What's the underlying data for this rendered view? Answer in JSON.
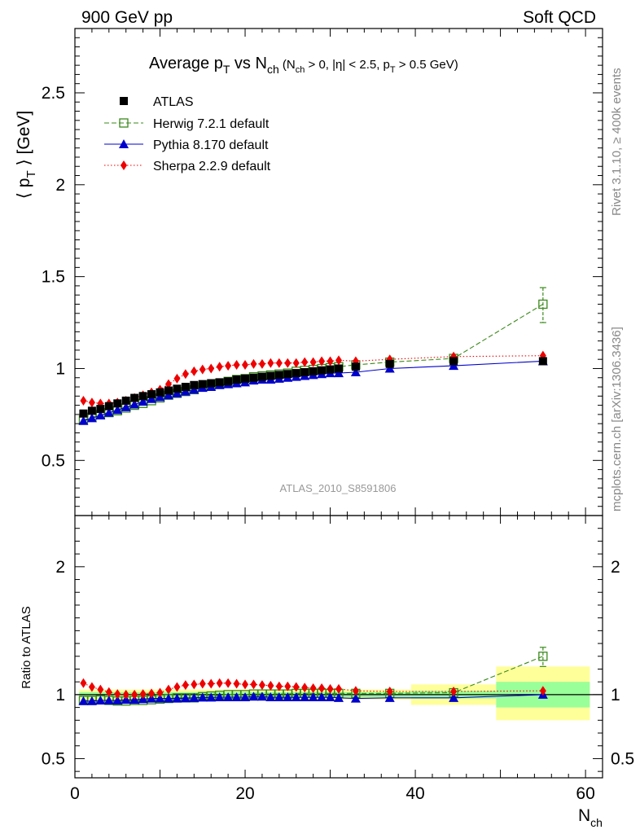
{
  "header": {
    "left": "900 GeV pp",
    "right": "Soft QCD"
  },
  "side_labels": {
    "rivet": "Rivet 3.1.10, ≥ 400k events",
    "mcplots": "mcplots.cern.ch [arXiv:1306.3436]"
  },
  "watermark": "ATLAS_2010_S8591806",
  "chart_data": [
    {
      "type": "scatter",
      "title": "Average pT vs Nch (Nch > 0, |η| < 2.5, pT > 0.5 GeV)",
      "title_parts": {
        "main": "Average p",
        "pt_sub": "T",
        "vs": " vs N",
        "ch_sub": "ch",
        "cut1": " (N",
        "cut_ch_sub": "ch",
        "cut2": " > 0, |η| < 2.5, p",
        "cut_pt_sub": "T",
        "cut3": " > 0.5 GeV)"
      },
      "ylabel": "⟨ pT ⟩ [GeV]",
      "ylabel_parts": {
        "open": "⟨ p",
        "sub": "T",
        "close": " ⟩ [GeV]"
      },
      "xlim": [
        0,
        62
      ],
      "ylim": [
        0.2,
        2.85
      ],
      "yticks": [
        0.5,
        1,
        1.5,
        2,
        2.5
      ],
      "ytick_labels": [
        "0.5",
        "1",
        "1.5",
        "2",
        "2.5"
      ],
      "legend_position": "top-left",
      "series": [
        {
          "name": "ATLAS",
          "color": "#000000",
          "marker": "square",
          "x": [
            1,
            2,
            3,
            4,
            5,
            6,
            7,
            8,
            9,
            10,
            11,
            12,
            13,
            14,
            15,
            16,
            17,
            18,
            19,
            20,
            21,
            22,
            23,
            24,
            25,
            26,
            27,
            28,
            29,
            30,
            31,
            33,
            37,
            44.5,
            55
          ],
          "y": [
            0.755,
            0.77,
            0.78,
            0.795,
            0.81,
            0.825,
            0.84,
            0.85,
            0.86,
            0.87,
            0.88,
            0.89,
            0.9,
            0.91,
            0.915,
            0.92,
            0.925,
            0.93,
            0.94,
            0.945,
            0.95,
            0.955,
            0.96,
            0.965,
            0.97,
            0.975,
            0.98,
            0.985,
            0.99,
            0.995,
            1.0,
            1.01,
            1.025,
            1.04,
            1.04
          ]
        },
        {
          "name": "Herwig 7.2.1 default",
          "color": "#3a8a1a",
          "marker": "open-square",
          "line": "dashed",
          "x": [
            1,
            2,
            3,
            4,
            5,
            6,
            7,
            8,
            9,
            10,
            11,
            12,
            13,
            14,
            15,
            16,
            17,
            18,
            19,
            20,
            21,
            22,
            23,
            24,
            25,
            26,
            27,
            28,
            29,
            30,
            31,
            33,
            37,
            44.5,
            55
          ],
          "y": [
            0.72,
            0.735,
            0.75,
            0.76,
            0.77,
            0.785,
            0.8,
            0.81,
            0.825,
            0.84,
            0.855,
            0.865,
            0.875,
            0.885,
            0.9,
            0.91,
            0.92,
            0.93,
            0.94,
            0.945,
            0.955,
            0.96,
            0.965,
            0.97,
            0.975,
            0.985,
            0.99,
            0.995,
            1.0,
            1.005,
            1.01,
            1.02,
            1.035,
            1.055,
            1.35
          ]
        },
        {
          "name": "Pythia 8.170 default",
          "color": "#0000cc",
          "marker": "triangle",
          "line": "solid",
          "x": [
            1,
            2,
            3,
            4,
            5,
            6,
            7,
            8,
            9,
            10,
            11,
            12,
            13,
            14,
            15,
            16,
            17,
            18,
            19,
            20,
            21,
            22,
            23,
            24,
            25,
            26,
            27,
            28,
            29,
            30,
            31,
            33,
            37,
            44.5,
            55
          ],
          "y": [
            0.715,
            0.73,
            0.745,
            0.76,
            0.775,
            0.79,
            0.805,
            0.82,
            0.835,
            0.845,
            0.855,
            0.865,
            0.875,
            0.885,
            0.895,
            0.9,
            0.91,
            0.915,
            0.92,
            0.925,
            0.935,
            0.94,
            0.94,
            0.945,
            0.95,
            0.955,
            0.96,
            0.965,
            0.97,
            0.975,
            0.975,
            0.98,
            1.0,
            1.015,
            1.04
          ]
        },
        {
          "name": "Sherpa 2.2.9 default",
          "color": "#ee0000",
          "marker": "diamond",
          "line": "dotted",
          "x": [
            1,
            2,
            3,
            4,
            5,
            6,
            7,
            8,
            9,
            10,
            11,
            12,
            13,
            14,
            15,
            16,
            17,
            18,
            19,
            20,
            21,
            22,
            23,
            24,
            25,
            26,
            27,
            28,
            29,
            30,
            31,
            33,
            37,
            44.5,
            55
          ],
          "y": [
            0.825,
            0.815,
            0.81,
            0.81,
            0.815,
            0.825,
            0.84,
            0.855,
            0.87,
            0.885,
            0.915,
            0.945,
            0.97,
            0.985,
            0.995,
            1.0,
            1.01,
            1.015,
            1.02,
            1.02,
            1.025,
            1.025,
            1.03,
            1.03,
            1.03,
            1.03,
            1.035,
            1.035,
            1.04,
            1.04,
            1.045,
            1.04,
            1.05,
            1.065,
            1.07
          ]
        }
      ]
    },
    {
      "type": "scatter",
      "ylabel": "Ratio to ATLAS",
      "xlabel": "Nch",
      "xlabel_parts": {
        "main": "N",
        "sub": "ch"
      },
      "xlim": [
        0,
        62
      ],
      "ylim": [
        0.35,
        2.4
      ],
      "xticks": [
        0,
        20,
        40,
        60
      ],
      "xtick_labels": [
        "0",
        "20",
        "40",
        "60"
      ],
      "yticks": [
        0.5,
        1,
        2
      ],
      "ytick_labels": [
        "0.5",
        "1",
        "2"
      ],
      "bands": [
        {
          "x0": 0.5,
          "x1": 39.5,
          "inner": [
            0.98,
            1.02
          ],
          "outer": [
            0.96,
            1.04
          ]
        },
        {
          "x0": 39.5,
          "x1": 49.5,
          "inner": [
            0.97,
            1.03
          ],
          "outer": [
            0.92,
            1.08
          ]
        },
        {
          "x0": 49.5,
          "x1": 60.5,
          "inner": [
            0.9,
            1.1
          ],
          "outer": [
            0.8,
            1.22
          ]
        }
      ],
      "band_colors": {
        "inner": "#99ff99",
        "outer": "#ffff99"
      },
      "series": [
        {
          "name": "Herwig 7.2.1 default",
          "color": "#3a8a1a",
          "marker": "open-square",
          "line": "dashed",
          "x": [
            1,
            2,
            3,
            4,
            5,
            6,
            7,
            8,
            9,
            10,
            11,
            12,
            13,
            14,
            15,
            16,
            17,
            18,
            19,
            20,
            21,
            22,
            23,
            24,
            25,
            26,
            27,
            28,
            29,
            30,
            31,
            33,
            37,
            44.5,
            55
          ],
          "y": [
            0.955,
            0.955,
            0.96,
            0.955,
            0.95,
            0.95,
            0.955,
            0.955,
            0.96,
            0.965,
            0.97,
            0.975,
            0.975,
            0.975,
            0.985,
            0.99,
            0.995,
            1.0,
            1.0,
            1.0,
            1.005,
            1.005,
            1.005,
            1.005,
            1.005,
            1.01,
            1.01,
            1.01,
            1.01,
            1.01,
            1.01,
            1.01,
            1.01,
            1.015,
            1.3
          ]
        },
        {
          "name": "Pythia 8.170 default",
          "color": "#0000cc",
          "marker": "triangle",
          "line": "solid",
          "x": [
            1,
            2,
            3,
            4,
            5,
            6,
            7,
            8,
            9,
            10,
            11,
            12,
            13,
            14,
            15,
            16,
            17,
            18,
            19,
            20,
            21,
            22,
            23,
            24,
            25,
            26,
            27,
            28,
            29,
            30,
            31,
            33,
            37,
            44.5,
            55
          ],
          "y": [
            0.95,
            0.95,
            0.955,
            0.955,
            0.955,
            0.96,
            0.96,
            0.965,
            0.97,
            0.97,
            0.97,
            0.97,
            0.972,
            0.975,
            0.978,
            0.978,
            0.98,
            0.98,
            0.98,
            0.98,
            0.985,
            0.985,
            0.98,
            0.98,
            0.98,
            0.98,
            0.98,
            0.98,
            0.98,
            0.98,
            0.975,
            0.97,
            0.975,
            0.975,
            1.0
          ]
        },
        {
          "name": "Sherpa 2.2.9 default",
          "color": "#ee0000",
          "marker": "diamond",
          "line": "dotted",
          "x": [
            1,
            2,
            3,
            4,
            5,
            6,
            7,
            8,
            9,
            10,
            11,
            12,
            13,
            14,
            15,
            16,
            17,
            18,
            19,
            20,
            21,
            22,
            23,
            24,
            25,
            26,
            27,
            28,
            29,
            30,
            31,
            33,
            37,
            44.5,
            55
          ],
          "y": [
            1.09,
            1.06,
            1.04,
            1.02,
            1.005,
            1.0,
            1.0,
            1.005,
            1.01,
            1.015,
            1.04,
            1.06,
            1.075,
            1.08,
            1.085,
            1.085,
            1.09,
            1.09,
            1.085,
            1.08,
            1.08,
            1.075,
            1.07,
            1.065,
            1.065,
            1.06,
            1.055,
            1.05,
            1.05,
            1.045,
            1.045,
            1.03,
            1.025,
            1.025,
            1.03
          ]
        }
      ]
    }
  ]
}
